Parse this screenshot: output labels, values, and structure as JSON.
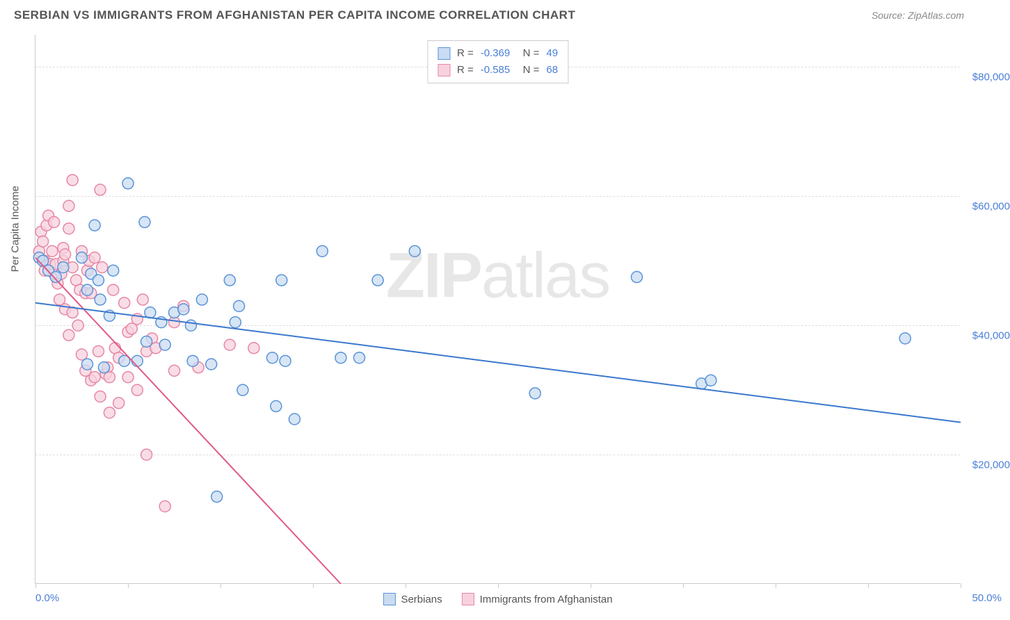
{
  "header": {
    "title": "SERBIAN VS IMMIGRANTS FROM AFGHANISTAN PER CAPITA INCOME CORRELATION CHART",
    "source_label": "Source:",
    "source_name": "ZipAtlas.com"
  },
  "chart": {
    "type": "scatter",
    "ylabel": "Per Capita Income",
    "watermark": {
      "bold": "ZIP",
      "rest": "atlas"
    },
    "background_color": "#ffffff",
    "grid_color": "#dddddd",
    "axis_color": "#cccccc",
    "x": {
      "min": 0,
      "max": 50,
      "ticks": [
        0,
        5,
        10,
        15,
        20,
        25,
        30,
        35,
        40,
        45,
        50
      ],
      "label_min": "0.0%",
      "label_max": "50.0%"
    },
    "y": {
      "min": 0,
      "max": 85000,
      "ticks": [
        20000,
        40000,
        60000,
        80000
      ],
      "tick_labels": [
        "$20,000",
        "$40,000",
        "$60,000",
        "$80,000"
      ]
    },
    "series": [
      {
        "key": "serbians",
        "label": "Serbians",
        "R": "-0.369",
        "N": "49",
        "marker_fill": "#c9dcf2",
        "marker_stroke": "#5a93d8",
        "line_color": "#3b78cc",
        "line_width": 2,
        "marker_radius": 8,
        "trend": {
          "x1": 0,
          "y1": 43500,
          "x2": 50,
          "y2": 25000
        },
        "points": [
          [
            0.2,
            50500
          ],
          [
            0.4,
            50000
          ],
          [
            0.7,
            48500
          ],
          [
            1.1,
            47500
          ],
          [
            1.5,
            49000
          ],
          [
            2.5,
            50500
          ],
          [
            3.0,
            48000
          ],
          [
            3.4,
            47000
          ],
          [
            3.2,
            55500
          ],
          [
            4.2,
            48500
          ],
          [
            5.0,
            62000
          ],
          [
            5.9,
            56000
          ],
          [
            2.8,
            45500
          ],
          [
            3.5,
            44000
          ],
          [
            4.0,
            41500
          ],
          [
            4.8,
            34500
          ],
          [
            5.5,
            34500
          ],
          [
            3.7,
            33500
          ],
          [
            2.8,
            34000
          ],
          [
            6.2,
            42000
          ],
          [
            6.8,
            40500
          ],
          [
            7.5,
            42000
          ],
          [
            8.0,
            42500
          ],
          [
            8.4,
            40000
          ],
          [
            9.0,
            44000
          ],
          [
            10.5,
            47000
          ],
          [
            10.8,
            40500
          ],
          [
            11.0,
            43000
          ],
          [
            13.3,
            47000
          ],
          [
            13.5,
            34500
          ],
          [
            12.8,
            35000
          ],
          [
            11.2,
            30000
          ],
          [
            9.8,
            13500
          ],
          [
            13.0,
            27500
          ],
          [
            14.0,
            25500
          ],
          [
            16.5,
            35000
          ],
          [
            17.5,
            35000
          ],
          [
            18.5,
            47000
          ],
          [
            15.5,
            51500
          ],
          [
            20.5,
            51500
          ],
          [
            27.0,
            29500
          ],
          [
            32.5,
            47500
          ],
          [
            36.0,
            31000
          ],
          [
            36.5,
            31500
          ],
          [
            47.0,
            38000
          ],
          [
            6.0,
            37500
          ],
          [
            7.0,
            37000
          ],
          [
            8.5,
            34500
          ],
          [
            9.5,
            34000
          ]
        ]
      },
      {
        "key": "afghan",
        "label": "Immigrants from Afghanistan",
        "R": "-0.585",
        "N": "68",
        "marker_fill": "#f7d2de",
        "marker_stroke": "#e787a5",
        "line_color": "#e05a85",
        "line_width": 2,
        "marker_radius": 8,
        "trend": {
          "x1": 0,
          "y1": 50500,
          "x2": 16.5,
          "y2": 0
        },
        "points": [
          [
            0.2,
            51500
          ],
          [
            0.3,
            54500
          ],
          [
            0.4,
            53000
          ],
          [
            0.5,
            50000
          ],
          [
            0.5,
            48500
          ],
          [
            0.6,
            55500
          ],
          [
            0.7,
            57000
          ],
          [
            0.8,
            49500
          ],
          [
            0.9,
            51500
          ],
          [
            1.0,
            48000
          ],
          [
            1.1,
            49500
          ],
          [
            1.2,
            46500
          ],
          [
            1.3,
            44000
          ],
          [
            1.4,
            48000
          ],
          [
            1.5,
            50000
          ],
          [
            1.5,
            52000
          ],
          [
            1.6,
            51000
          ],
          [
            1.6,
            42500
          ],
          [
            1.8,
            58500
          ],
          [
            1.8,
            55000
          ],
          [
            1.8,
            38500
          ],
          [
            2.0,
            62500
          ],
          [
            2.0,
            49000
          ],
          [
            2.0,
            42000
          ],
          [
            2.2,
            47000
          ],
          [
            2.3,
            40000
          ],
          [
            2.4,
            45500
          ],
          [
            2.5,
            51500
          ],
          [
            2.5,
            35500
          ],
          [
            2.7,
            33000
          ],
          [
            2.7,
            45000
          ],
          [
            2.8,
            48500
          ],
          [
            2.9,
            50000
          ],
          [
            3.0,
            45000
          ],
          [
            3.0,
            31500
          ],
          [
            3.2,
            32000
          ],
          [
            3.2,
            50500
          ],
          [
            3.4,
            36000
          ],
          [
            3.5,
            29000
          ],
          [
            3.6,
            49000
          ],
          [
            3.8,
            32500
          ],
          [
            3.9,
            33500
          ],
          [
            4.0,
            26500
          ],
          [
            4.0,
            32000
          ],
          [
            4.2,
            45500
          ],
          [
            4.3,
            36500
          ],
          [
            4.5,
            35000
          ],
          [
            4.5,
            28000
          ],
          [
            4.8,
            43500
          ],
          [
            5.0,
            32000
          ],
          [
            5.0,
            39000
          ],
          [
            5.2,
            39500
          ],
          [
            5.5,
            41000
          ],
          [
            5.5,
            30000
          ],
          [
            5.8,
            44000
          ],
          [
            6.0,
            20000
          ],
          [
            6.0,
            36000
          ],
          [
            6.3,
            38000
          ],
          [
            6.5,
            36500
          ],
          [
            7.0,
            12000
          ],
          [
            7.5,
            40500
          ],
          [
            7.5,
            33000
          ],
          [
            8.0,
            43000
          ],
          [
            8.8,
            33500
          ],
          [
            10.5,
            37000
          ],
          [
            11.8,
            36500
          ],
          [
            3.5,
            61000
          ],
          [
            1.0,
            56000
          ]
        ]
      }
    ]
  }
}
